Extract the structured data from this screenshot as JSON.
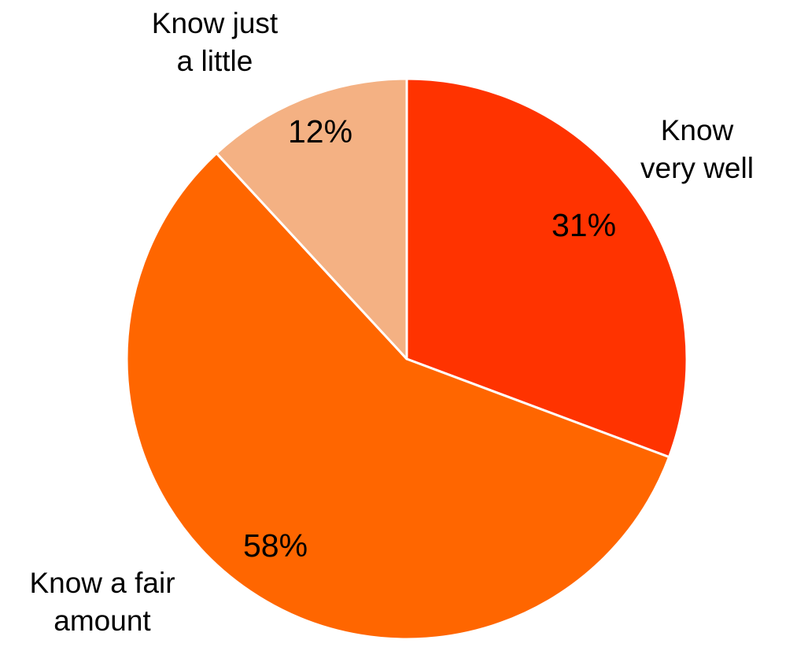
{
  "chart_data": {
    "type": "pie",
    "title": "",
    "start_angle_deg": 0,
    "direction": "clockwise",
    "slices": [
      {
        "name": "slice-very-well",
        "label_lines": [
          "Know",
          "very well"
        ],
        "value": 31,
        "value_label": "31%",
        "color": "#FF3300"
      },
      {
        "name": "slice-fair-amount",
        "label_lines": [
          "Know a fair",
          "amount"
        ],
        "value": 58,
        "value_label": "58%",
        "color": "#FF6600"
      },
      {
        "name": "slice-just-little",
        "label_lines": [
          "Know just",
          "a little"
        ],
        "value": 12,
        "value_label": "12%",
        "color": "#F4B183"
      }
    ],
    "separator_color": "#FFFFFF"
  }
}
